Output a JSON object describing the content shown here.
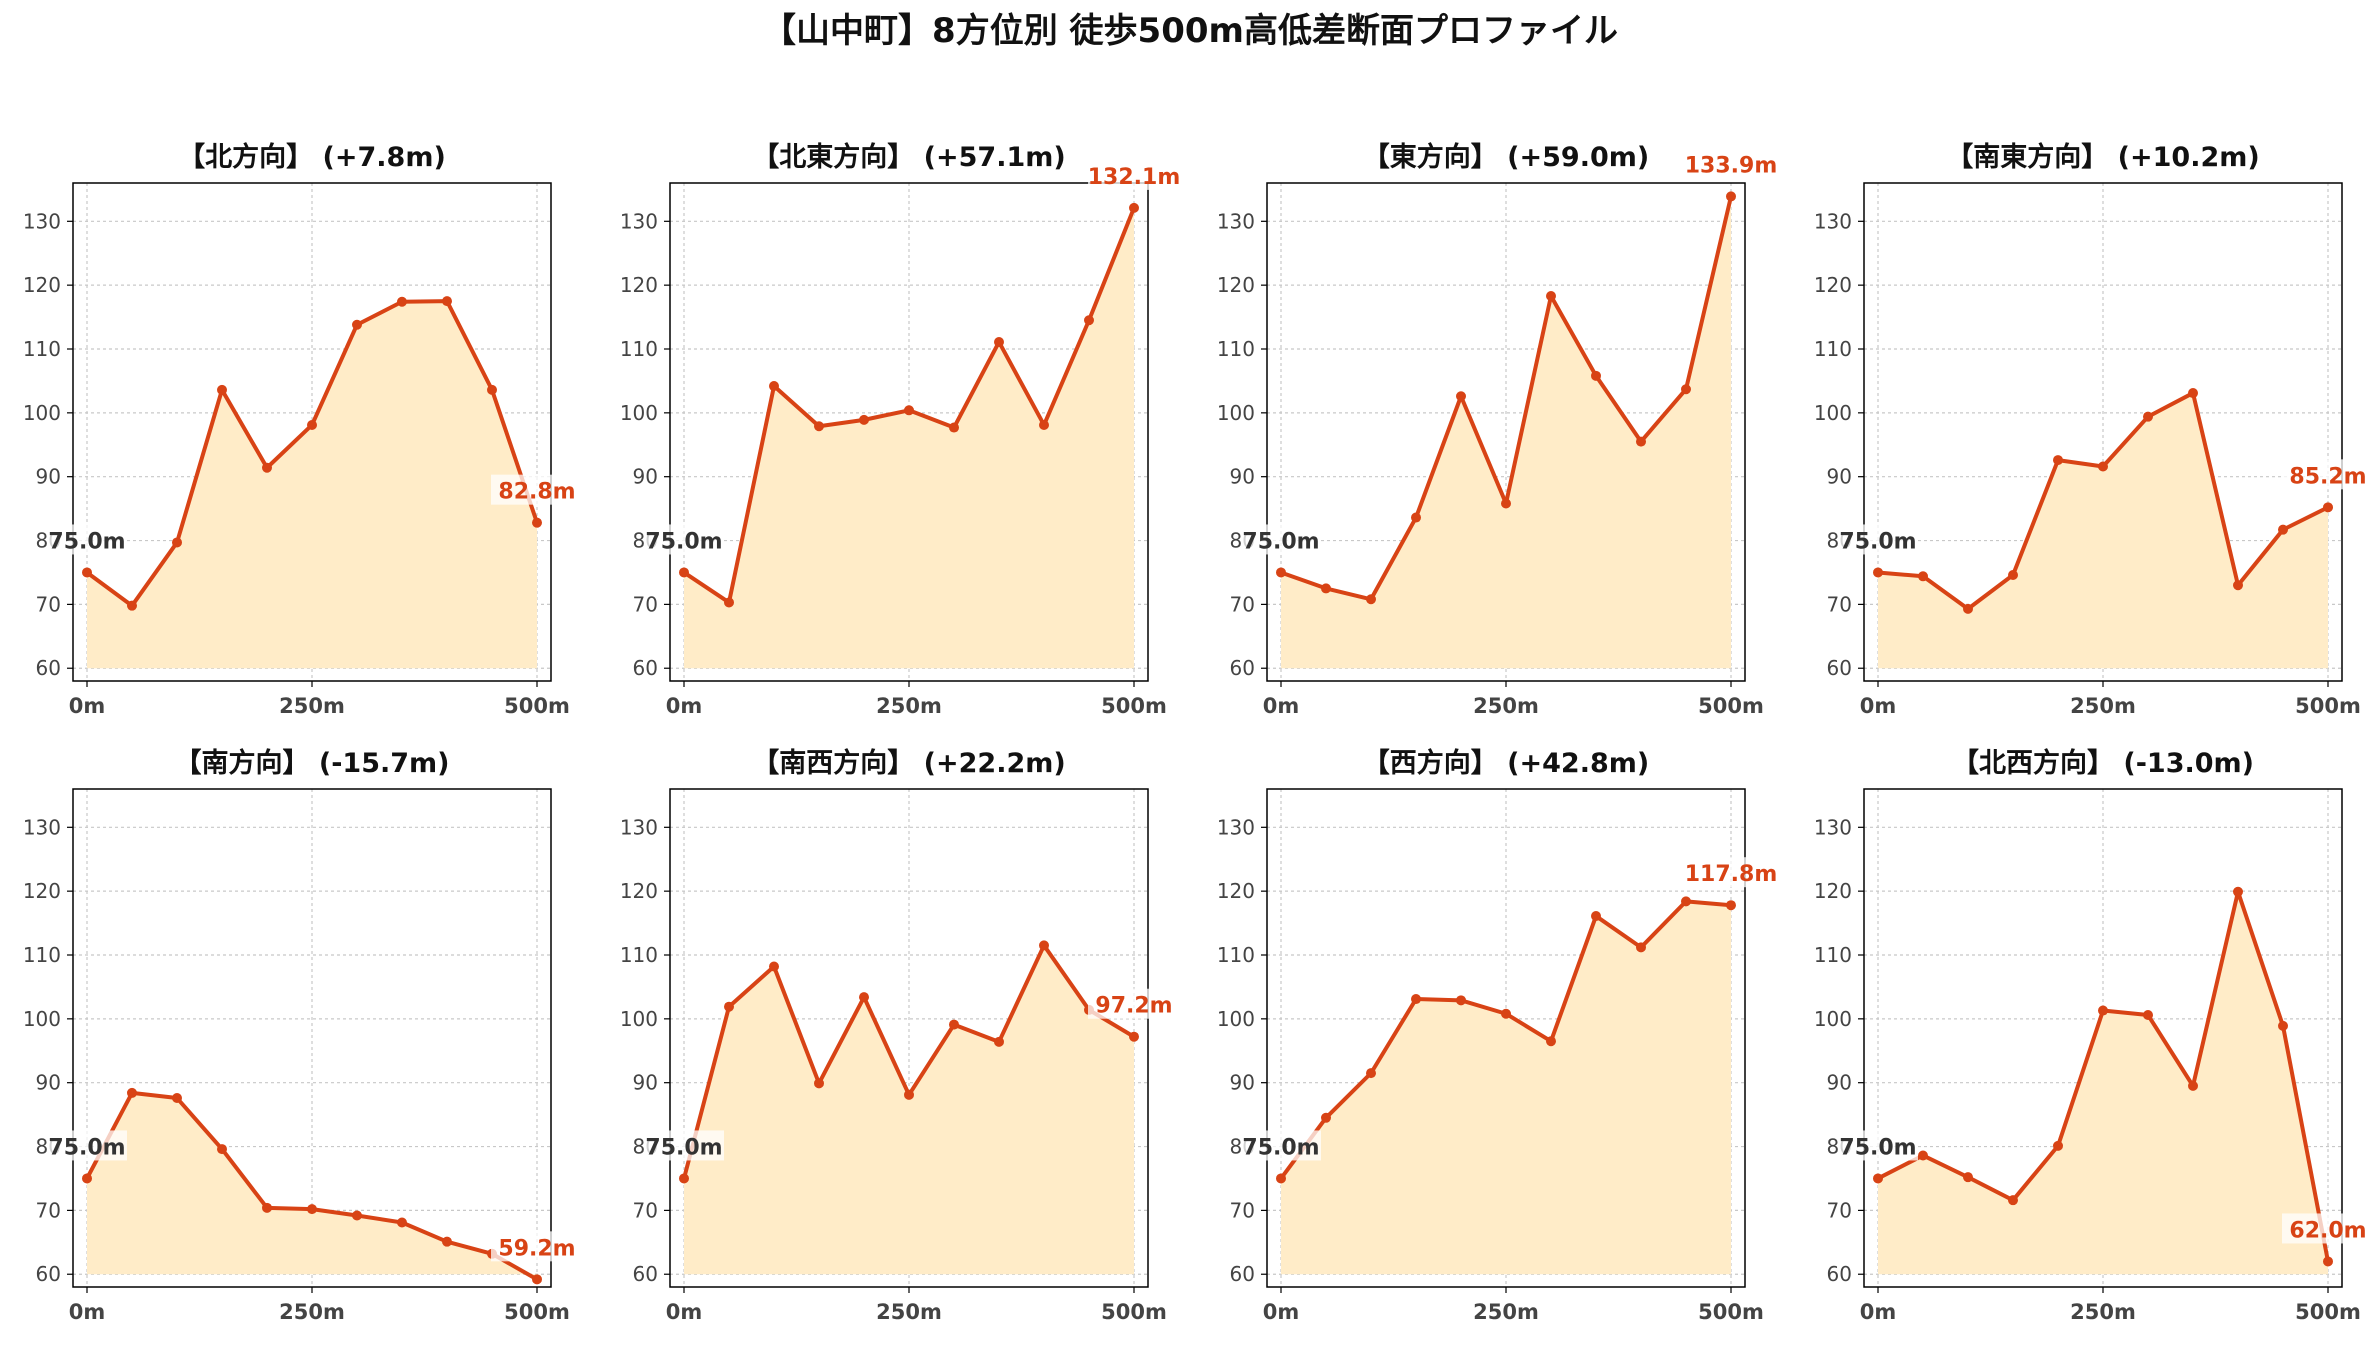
{
  "title": "【山中町】8方位別 徒歩500m高低差断面プロファイル",
  "colors": {
    "line": "#d84315",
    "fill": "#ffecc8",
    "start_label": "#333333",
    "end_label": "#d84315",
    "grid": "#c8c8c8",
    "axis": "#000000",
    "tick_text": "#444444"
  },
  "chart_data": [
    {
      "type": "area",
      "title": "【北方向】 (+7.8m)",
      "x": [
        0,
        50,
        100,
        150,
        200,
        250,
        300,
        350,
        400,
        450,
        500
      ],
      "y": [
        75.0,
        69.8,
        79.7,
        103.6,
        91.4,
        98.1,
        113.8,
        117.4,
        117.5,
        103.6,
        82.8
      ],
      "xticks": [
        "0m",
        "250m",
        "500m"
      ],
      "yticks": [
        "60",
        "70",
        "80",
        "90",
        "100",
        "110",
        "120",
        "130"
      ],
      "ylim": [
        58,
        136
      ],
      "start_label": "75.0m",
      "end_label": "82.8m",
      "grid": true
    },
    {
      "type": "area",
      "title": "【北東方向】 (+57.1m)",
      "x": [
        0,
        50,
        100,
        150,
        200,
        250,
        300,
        350,
        400,
        450,
        500
      ],
      "y": [
        75.0,
        70.3,
        104.2,
        97.9,
        98.9,
        100.4,
        97.7,
        111.1,
        98.1,
        114.5,
        132.1
      ],
      "xticks": [
        "0m",
        "250m",
        "500m"
      ],
      "yticks": [
        "60",
        "70",
        "80",
        "90",
        "100",
        "110",
        "120",
        "130"
      ],
      "ylim": [
        58,
        136
      ],
      "start_label": "75.0m",
      "end_label": "132.1m",
      "grid": true
    },
    {
      "type": "area",
      "title": "【東方向】 (+59.0m)",
      "x": [
        0,
        50,
        100,
        150,
        200,
        250,
        300,
        350,
        400,
        450,
        500
      ],
      "y": [
        75.0,
        72.5,
        70.8,
        83.6,
        102.6,
        85.8,
        118.3,
        105.8,
        95.5,
        103.7,
        133.9
      ],
      "xticks": [
        "0m",
        "250m",
        "500m"
      ],
      "yticks": [
        "60",
        "70",
        "80",
        "90",
        "100",
        "110",
        "120",
        "130"
      ],
      "ylim": [
        58,
        136
      ],
      "start_label": "75.0m",
      "end_label": "133.9m",
      "grid": true
    },
    {
      "type": "area",
      "title": "【南東方向】 (+10.2m)",
      "x": [
        0,
        50,
        100,
        150,
        200,
        250,
        300,
        350,
        400,
        450,
        500
      ],
      "y": [
        75.0,
        74.4,
        69.3,
        74.6,
        92.6,
        91.6,
        99.4,
        103.1,
        73.0,
        81.7,
        85.2
      ],
      "xticks": [
        "0m",
        "250m",
        "500m"
      ],
      "yticks": [
        "60",
        "70",
        "80",
        "90",
        "100",
        "110",
        "120",
        "130"
      ],
      "ylim": [
        58,
        136
      ],
      "start_label": "75.0m",
      "end_label": "85.2m",
      "grid": true
    },
    {
      "type": "area",
      "title": "【南方向】 (-15.7m)",
      "x": [
        0,
        50,
        100,
        150,
        200,
        250,
        300,
        350,
        400,
        450,
        500
      ],
      "y": [
        75.0,
        88.4,
        87.6,
        79.6,
        70.4,
        70.2,
        69.2,
        68.1,
        65.1,
        63.2,
        59.2
      ],
      "xticks": [
        "0m",
        "250m",
        "500m"
      ],
      "yticks": [
        "60",
        "70",
        "80",
        "90",
        "100",
        "110",
        "120",
        "130"
      ],
      "ylim": [
        58,
        136
      ],
      "start_label": "75.0m",
      "end_label": "59.2m",
      "grid": true
    },
    {
      "type": "area",
      "title": "【南西方向】 (+22.2m)",
      "x": [
        0,
        50,
        100,
        150,
        200,
        250,
        300,
        350,
        400,
        450,
        500
      ],
      "y": [
        75.0,
        101.9,
        108.2,
        89.9,
        103.4,
        88.1,
        99.1,
        96.4,
        111.5,
        101.4,
        97.2
      ],
      "xticks": [
        "0m",
        "250m",
        "500m"
      ],
      "yticks": [
        "60",
        "70",
        "80",
        "90",
        "100",
        "110",
        "120",
        "130"
      ],
      "ylim": [
        58,
        136
      ],
      "start_label": "75.0m",
      "end_label": "97.2m",
      "grid": true
    },
    {
      "type": "area",
      "title": "【西方向】 (+42.8m)",
      "x": [
        0,
        50,
        100,
        150,
        200,
        250,
        300,
        350,
        400,
        450,
        500
      ],
      "y": [
        75.0,
        84.5,
        91.5,
        103.1,
        102.9,
        100.8,
        96.5,
        116.1,
        111.2,
        118.4,
        117.8
      ],
      "xticks": [
        "0m",
        "250m",
        "500m"
      ],
      "yticks": [
        "60",
        "70",
        "80",
        "90",
        "100",
        "110",
        "120",
        "130"
      ],
      "ylim": [
        58,
        136
      ],
      "start_label": "75.0m",
      "end_label": "117.8m",
      "grid": true
    },
    {
      "type": "area",
      "title": "【北西方向】 (-13.0m)",
      "x": [
        0,
        50,
        100,
        150,
        200,
        250,
        300,
        350,
        400,
        450,
        500
      ],
      "y": [
        75.0,
        78.6,
        75.2,
        71.6,
        80.1,
        101.3,
        100.6,
        89.5,
        119.9,
        98.9,
        62.0
      ],
      "xticks": [
        "0m",
        "250m",
        "500m"
      ],
      "yticks": [
        "60",
        "70",
        "80",
        "90",
        "100",
        "110",
        "120",
        "130"
      ],
      "ylim": [
        58,
        136
      ],
      "start_label": "75.0m",
      "end_label": "62.0m",
      "grid": true
    }
  ]
}
